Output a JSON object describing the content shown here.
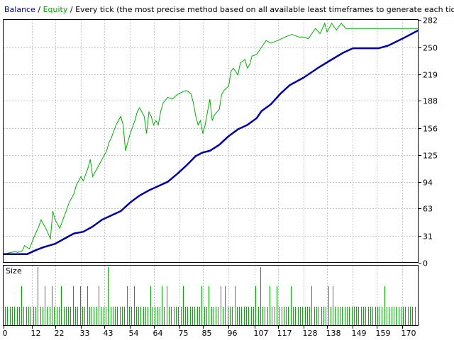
{
  "header": {
    "balance_label": "Balance",
    "sep1": " / ",
    "equity_label": "Equity",
    "sep2": " / ",
    "rest": "Every tick (the most precise method based on all available least timeframes to generate each tick) /"
  },
  "size_panel": {
    "label": "Size"
  },
  "colors": {
    "balance": "#0000a0",
    "equity": "#00b000",
    "size_bars": "#00b000",
    "grid": "#c8c8c8",
    "frame": "#000000",
    "header_balance_text": "#0000a0",
    "header_equity_text": "#00a000"
  },
  "chart_data": [
    {
      "type": "line",
      "ylim": [
        0,
        282
      ],
      "xlim": [
        0,
        177
      ],
      "y_ticks": [
        0,
        31,
        63,
        94,
        125,
        156,
        188,
        219,
        250,
        282
      ],
      "x_ticks": [
        0,
        12,
        22,
        33,
        43,
        54,
        64,
        75,
        85,
        96,
        107,
        117,
        128,
        138,
        149,
        159,
        170
      ],
      "grid": true,
      "series": [
        {
          "name": "Balance",
          "x": [
            0,
            7,
            10,
            14,
            17,
            22,
            26,
            30,
            34,
            38,
            42,
            46,
            50,
            54,
            58,
            62,
            66,
            70,
            74,
            78,
            82,
            85,
            88,
            92,
            96,
            100,
            104,
            108,
            110,
            114,
            118,
            122,
            128,
            134,
            140,
            145,
            149,
            152,
            155,
            160,
            164,
            170,
            177
          ],
          "values": [
            10,
            10,
            10,
            15,
            18,
            22,
            28,
            34,
            36,
            42,
            50,
            55,
            60,
            70,
            78,
            84,
            89,
            94,
            103,
            113,
            124,
            128,
            130,
            137,
            147,
            155,
            160,
            168,
            176,
            184,
            196,
            206,
            215,
            226,
            236,
            244,
            249,
            249,
            249,
            249,
            252,
            260,
            270
          ]
        },
        {
          "name": "Equity",
          "x": [
            0,
            3,
            5,
            6,
            8,
            9,
            11,
            13,
            15,
            16,
            18,
            20,
            21,
            22,
            24,
            26,
            27,
            28,
            30,
            31,
            33,
            34,
            36,
            37,
            38,
            40,
            42,
            43,
            44,
            45,
            46,
            48,
            49,
            50,
            51,
            52,
            54,
            56,
            57,
            58,
            60,
            61,
            62,
            63,
            64,
            65,
            66,
            67,
            68,
            70,
            72,
            74,
            76,
            78,
            80,
            81,
            82,
            83,
            84,
            85,
            86,
            87,
            88,
            89,
            90,
            92,
            93,
            94,
            96,
            97,
            98,
            100,
            101,
            103,
            104,
            105,
            106,
            108,
            110,
            112,
            114,
            117,
            120,
            123,
            126,
            128,
            130,
            133,
            135,
            137,
            138,
            140,
            142,
            144,
            146,
            150,
            160,
            170,
            177
          ],
          "values": [
            10,
            12,
            13,
            12,
            14,
            20,
            16,
            30,
            42,
            50,
            40,
            28,
            60,
            50,
            40,
            55,
            62,
            70,
            80,
            90,
            100,
            95,
            110,
            120,
            100,
            110,
            120,
            125,
            130,
            140,
            145,
            160,
            165,
            170,
            160,
            130,
            150,
            165,
            175,
            180,
            170,
            150,
            175,
            170,
            160,
            165,
            160,
            175,
            185,
            192,
            190,
            195,
            198,
            200,
            196,
            185,
            170,
            160,
            165,
            150,
            160,
            175,
            190,
            165,
            172,
            178,
            195,
            200,
            205,
            222,
            226,
            218,
            232,
            236,
            226,
            230,
            240,
            242,
            250,
            258,
            255,
            258,
            262,
            265,
            262,
            262,
            260,
            272,
            266,
            278,
            268,
            278,
            270,
            278,
            272,
            272,
            272,
            272,
            272
          ]
        }
      ]
    },
    {
      "type": "bar",
      "title": "Size",
      "ylim": [
        0,
        3
      ],
      "x": [
        1,
        2,
        3,
        4,
        5,
        6,
        7,
        8,
        9,
        10,
        11,
        12,
        13,
        14,
        15,
        16,
        17,
        18,
        19,
        20,
        21,
        22,
        23,
        24,
        25,
        26,
        27,
        28,
        29,
        30,
        31,
        32,
        33,
        34,
        35,
        36,
        37,
        38,
        39,
        40,
        41,
        42,
        43,
        44,
        45,
        46,
        47,
        48,
        49,
        50,
        51,
        52,
        53,
        54,
        55,
        56,
        57,
        58,
        59,
        60,
        61,
        62,
        63,
        64,
        65,
        66,
        67,
        68,
        69,
        70,
        71,
        72,
        73,
        74,
        75,
        76,
        77,
        78,
        79,
        80,
        81,
        82,
        83,
        84,
        85,
        86,
        87,
        88,
        89,
        90,
        91,
        92,
        93,
        94,
        95,
        96,
        97,
        98,
        99,
        100,
        101,
        102,
        103,
        104,
        105,
        106,
        107,
        108,
        109,
        110,
        111,
        112,
        113,
        114,
        115,
        116,
        117,
        118,
        119,
        120,
        121,
        122,
        123,
        124,
        125,
        126,
        127,
        128,
        129,
        130,
        131,
        132,
        133,
        134,
        135,
        136,
        137,
        138,
        139,
        140,
        141,
        142,
        143,
        144,
        145,
        146,
        147,
        148,
        149,
        150,
        151,
        152,
        153,
        154,
        155,
        156,
        157,
        158,
        159,
        160,
        161,
        162,
        163,
        164,
        165,
        166,
        167,
        168,
        169,
        170,
        171,
        172,
        173,
        174,
        175,
        176
      ],
      "values": [
        1,
        1,
        1,
        1,
        1,
        1,
        1,
        2,
        1,
        1,
        1,
        1,
        1,
        1,
        3,
        1,
        1,
        2,
        1,
        1,
        2,
        1,
        1,
        1,
        2,
        1,
        1,
        1,
        1,
        2,
        1,
        1,
        2,
        1,
        1,
        2,
        1,
        1,
        1,
        1,
        2,
        1,
        1,
        1,
        3,
        1,
        1,
        1,
        1,
        1,
        1,
        1,
        2,
        1,
        1,
        2,
        1,
        1,
        1,
        1,
        1,
        1,
        2,
        1,
        1,
        1,
        1,
        2,
        1,
        2,
        1,
        1,
        1,
        1,
        1,
        1,
        2,
        1,
        1,
        1,
        1,
        1,
        1,
        1,
        2,
        1,
        1,
        2,
        1,
        1,
        1,
        1,
        2,
        1,
        2,
        1,
        1,
        1,
        2,
        1,
        1,
        1,
        1,
        1,
        1,
        1,
        1,
        2,
        1,
        3,
        1,
        1,
        1,
        2,
        1,
        1,
        2,
        1,
        1,
        1,
        1,
        1,
        2,
        1,
        1,
        1,
        1,
        1,
        1,
        1,
        1,
        2,
        1,
        1,
        1,
        1,
        1,
        1,
        2,
        1,
        2,
        1,
        1,
        1,
        1,
        1,
        1,
        1,
        1,
        1,
        1,
        1,
        1,
        1,
        1,
        1,
        1,
        1,
        1,
        1,
        1,
        1,
        2,
        1,
        1,
        1,
        1,
        1,
        1,
        1,
        1,
        1,
        1,
        1,
        1,
        1
      ]
    }
  ]
}
